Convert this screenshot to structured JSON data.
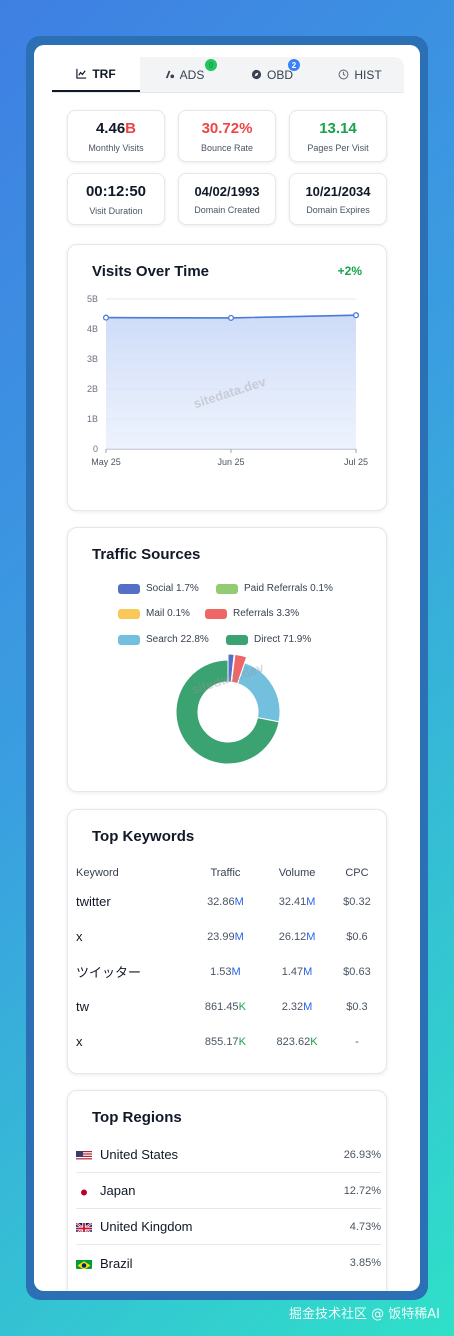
{
  "tabs": [
    {
      "label": "TRF",
      "icon": "chart-line-icon",
      "badge": null
    },
    {
      "label": "ADS",
      "icon": "ads-icon",
      "badge": "0"
    },
    {
      "label": "OBD",
      "icon": "compass-icon",
      "badge": "2"
    },
    {
      "label": "HIST",
      "icon": "clock-icon",
      "badge": null
    }
  ],
  "stats": [
    {
      "value": "4.46",
      "suffix": "B",
      "label": "Monthly Visits"
    },
    {
      "value": "30.72%",
      "label": "Bounce Rate"
    },
    {
      "value": "13.14",
      "label": "Pages Per Visit"
    },
    {
      "value": "00:12:50",
      "label": "Visit Duration"
    },
    {
      "value": "04/02/1993",
      "label": "Domain Created"
    },
    {
      "value": "10/21/2034",
      "label": "Domain Expires"
    }
  ],
  "visits": {
    "title": "Visits Over Time",
    "trend": "+2%",
    "watermark": "sitedata.dev"
  },
  "chart_data": {
    "type": "area",
    "x": [
      "May 25",
      "Jun 25",
      "Jul 25"
    ],
    "series": [
      {
        "values": [
          4.38,
          4.37,
          4.46
        ]
      }
    ],
    "y_ticks": [
      "0",
      "1B",
      "2B",
      "3B",
      "4B",
      "5B"
    ],
    "ylim": [
      0,
      5
    ],
    "grid": true,
    "color": "#4a7bd6"
  },
  "traffic": {
    "title": "Traffic Sources",
    "watermark": "sitedata.dev",
    "sources": [
      {
        "label": "Social 1.7%",
        "name": "Social",
        "pct": 1.7,
        "color": "#5470c6"
      },
      {
        "label": "Paid Referrals 0.1%",
        "name": "Paid Referrals",
        "pct": 0.1,
        "color": "#91cc75"
      },
      {
        "label": "Mail 0.1%",
        "name": "Mail",
        "pct": 0.1,
        "color": "#fac858"
      },
      {
        "label": "Referrals 3.3%",
        "name": "Referrals",
        "pct": 3.3,
        "color": "#ee6666"
      },
      {
        "label": "Search 22.8%",
        "name": "Search",
        "pct": 22.8,
        "color": "#73c0de"
      },
      {
        "label": "Direct 71.9%",
        "name": "Direct",
        "pct": 71.9,
        "color": "#3ba272"
      }
    ]
  },
  "keywords": {
    "title": "Top Keywords",
    "headers": [
      "Keyword",
      "Traffic",
      "Volume",
      "CPC"
    ],
    "rows": [
      {
        "keyword": "twitter",
        "traffic": "32.86",
        "traffic_unit": "M",
        "volume": "32.41",
        "volume_unit": "M",
        "cpc": "$0.32"
      },
      {
        "keyword": "x",
        "traffic": "23.99",
        "traffic_unit": "M",
        "volume": "26.12",
        "volume_unit": "M",
        "cpc": "$0.6"
      },
      {
        "keyword": "ツイッター",
        "traffic": "1.53",
        "traffic_unit": "M",
        "volume": "1.47",
        "volume_unit": "M",
        "cpc": "$0.63"
      },
      {
        "keyword": "tw",
        "traffic": "861.45",
        "traffic_unit": "K",
        "volume": "2.32",
        "volume_unit": "M",
        "cpc": "$0.3"
      },
      {
        "keyword": "x",
        "traffic": "855.17",
        "traffic_unit": "K",
        "volume": "823.62",
        "volume_unit": "K",
        "cpc": "-"
      }
    ]
  },
  "regions": {
    "title": "Top Regions",
    "rows": [
      {
        "name": "United States",
        "pct": "26.93%",
        "flag": "us-flag-icon"
      },
      {
        "name": "Japan",
        "pct": "12.72%",
        "flag": "jp-flag-icon"
      },
      {
        "name": "United Kingdom",
        "pct": "4.73%",
        "flag": "uk-flag-icon"
      },
      {
        "name": "Brazil",
        "pct": "3.85%",
        "flag": "br-flag-icon"
      }
    ]
  },
  "footer_watermark": "掘金技术社区 @ 饭特稀AI"
}
